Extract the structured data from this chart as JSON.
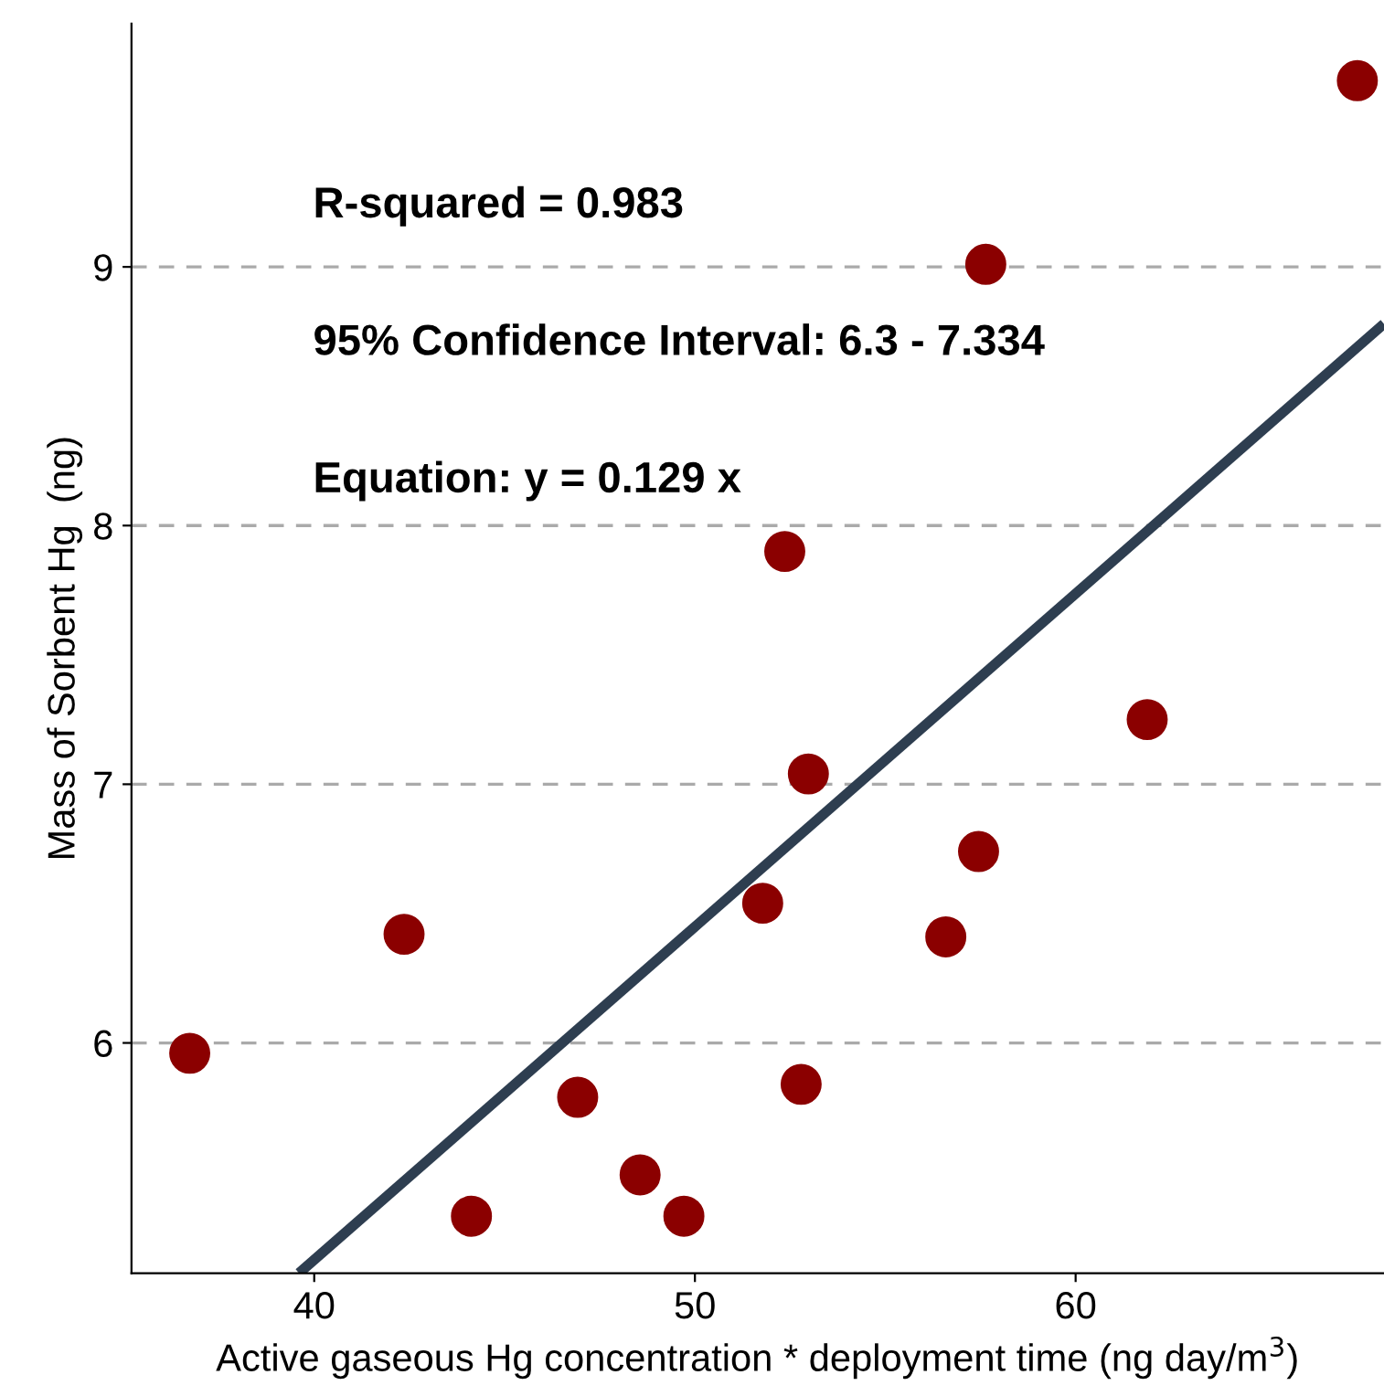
{
  "chart_data": {
    "type": "scatter",
    "xlabel": "Active gaseous Hg concentration * deployment time (ng day/m$^{3}$)",
    "ylabel": "Mass of Sorbent Hg  (ng)",
    "annotations": [
      "R-squared = 0.983",
      "95% Confidence Interval: 6.3 - 7.334",
      "Equation: y = 0.129 x"
    ],
    "x": [
      36.73,
      42.36,
      44.13,
      46.92,
      48.56,
      49.71,
      51.78,
      52.36,
      52.79,
      52.98,
      56.59,
      57.45,
      57.64,
      61.88,
      67.4
    ],
    "series": [
      {
        "color": "#8b0000",
        "marker": "circle",
        "values": [
          5.96,
          6.42,
          5.33,
          5.79,
          5.49,
          5.33,
          6.54,
          7.9,
          5.84,
          7.04,
          6.41,
          6.74,
          9.01,
          7.25,
          9.72
        ]
      },
      {
        "type": "line",
        "color": "#2e3e50",
        "x": [
          39.6,
          68.1
        ],
        "values": [
          5.11,
          8.78
        ]
      }
    ],
    "xlim": [
      35.2,
      68.1
    ],
    "ylim": [
      5.11,
      9.94
    ],
    "xticks": [
      40,
      50,
      60
    ],
    "yticks": [
      6,
      7,
      8,
      9
    ],
    "grid": "y",
    "legend": false
  }
}
